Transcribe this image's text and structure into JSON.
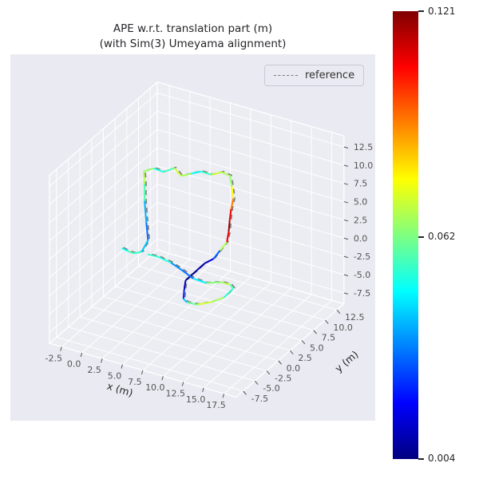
{
  "figure": {
    "axes_background": "#eaeaf2",
    "pane_color": "#ececf3",
    "grid_color": "#ffffff",
    "tick_color": "#555555",
    "text_color": "#262626"
  },
  "legend": {
    "label": "reference",
    "line_style": "dashed",
    "line_color": "#7a7a7a"
  },
  "colorbar": {
    "min": 0.004,
    "mid": 0.062,
    "max": 0.121,
    "colormap": "jet",
    "tick_labels": [
      "0.121",
      "0.062",
      "0.004"
    ]
  },
  "chart_data": {
    "type": "line",
    "projection": "3d",
    "title": "APE w.r.t. translation part (m)",
    "subtitle": "(with Sim(3) Umeyama alignment)",
    "xlabel": "x (m)",
    "ylabel": "y (m)",
    "xlim": [
      -4,
      19
    ],
    "ylim": [
      -9,
      14
    ],
    "zlim": [
      -9,
      14
    ],
    "xticks": [
      -2.5,
      0,
      2.5,
      5,
      7.5,
      10,
      12.5,
      15,
      17.5
    ],
    "yticks": [
      -7.5,
      -5,
      -2.5,
      0,
      2.5,
      5,
      7.5,
      10,
      12.5
    ],
    "zticks": [
      -7.5,
      -5,
      -2.5,
      0,
      2.5,
      5,
      7.5,
      10,
      12.5
    ],
    "colormap": "jet",
    "error_range": [
      0.004,
      0.121
    ],
    "grid": true,
    "legend_position": "upper right",
    "series": [
      {
        "name": "reference",
        "style": "dashed",
        "color": "#7a7a7a",
        "points": [
          [
            -1.7,
            2.8,
            -1.7
          ],
          [
            -0.7,
            2.3,
            -1.5
          ],
          [
            0.3,
            1.8,
            -1.2
          ],
          [
            1.3,
            1.8,
            -0.7
          ],
          [
            1.8,
            2.3,
            0.8
          ],
          [
            1.3,
            2.8,
            2.8
          ],
          [
            0.8,
            3.3,
            5.3
          ],
          [
            0.5,
            3.8,
            7.3
          ],
          [
            0.3,
            4.0,
            8.8
          ],
          [
            1.3,
            4.4,
            9.3
          ],
          [
            2.3,
            4.8,
            8.9
          ],
          [
            3.3,
            5.3,
            9.5
          ],
          [
            4.3,
            5.0,
            8.9
          ],
          [
            5.3,
            5.4,
            9.3
          ],
          [
            6.3,
            5.8,
            9.7
          ],
          [
            7.3,
            6.3,
            9.3
          ],
          [
            8.3,
            6.8,
            9.7
          ],
          [
            9.3,
            6.8,
            9.5
          ],
          [
            9.8,
            6.3,
            8.5
          ],
          [
            10.3,
            5.8,
            7.3
          ],
          [
            10.3,
            5.3,
            6.1
          ],
          [
            10.3,
            5.0,
            4.7
          ],
          [
            10.3,
            4.8,
            3.3
          ],
          [
            10.3,
            4.4,
            2.1
          ],
          [
            9.8,
            3.8,
            1.1
          ],
          [
            9.3,
            3.3,
            0.1
          ],
          [
            8.5,
            2.8,
            -0.5
          ],
          [
            7.9,
            1.8,
            -1.3
          ],
          [
            7.3,
            0.8,
            -2.1
          ],
          [
            7.7,
            -0.2,
            -2.7
          ],
          [
            8.3,
            -1.4,
            -3.1
          ],
          [
            9.3,
            -2.4,
            -2.7
          ],
          [
            10.8,
            -2.8,
            -2.3
          ],
          [
            12.3,
            -2.4,
            -1.7
          ],
          [
            13.3,
            -1.4,
            -1.3
          ],
          [
            13.5,
            0.2,
            -0.9
          ],
          [
            12.5,
            1.3,
            -1.3
          ],
          [
            11.1,
            1.8,
            -1.7
          ],
          [
            9.5,
            1.4,
            -2.1
          ],
          [
            8.1,
            1.0,
            -1.7
          ],
          [
            6.5,
            1.4,
            -1.3
          ],
          [
            4.9,
            1.8,
            -1.0
          ],
          [
            3.3,
            1.9,
            -0.8
          ],
          [
            1.9,
            2.1,
            -1.0
          ]
        ]
      },
      {
        "name": "APE",
        "style": "solid",
        "color_by": "error",
        "points": [
          [
            -2.0,
            3.0,
            -2.0
          ],
          [
            -1.0,
            2.5,
            -1.8
          ],
          [
            0.0,
            2.0,
            -1.5
          ],
          [
            1.0,
            2.0,
            -1.0
          ],
          [
            1.5,
            2.5,
            0.5
          ],
          [
            1.0,
            3.0,
            2.5
          ],
          [
            0.5,
            3.5,
            5.0
          ],
          [
            0.2,
            4.0,
            7.0
          ],
          [
            0.0,
            4.2,
            8.5
          ],
          [
            1.0,
            4.6,
            9.0
          ],
          [
            2.0,
            5.0,
            8.6
          ],
          [
            3.0,
            5.5,
            9.2
          ],
          [
            4.0,
            5.2,
            8.6
          ],
          [
            5.0,
            5.6,
            9.0
          ],
          [
            6.0,
            6.0,
            9.4
          ],
          [
            7.0,
            6.5,
            9.0
          ],
          [
            8.0,
            7.0,
            9.4
          ],
          [
            9.0,
            7.0,
            9.2
          ],
          [
            9.5,
            6.5,
            8.2
          ],
          [
            10.0,
            6.0,
            7.0
          ],
          [
            10.0,
            5.5,
            5.8
          ],
          [
            10.0,
            5.2,
            4.4
          ],
          [
            10.0,
            5.0,
            3.0
          ],
          [
            10.0,
            4.6,
            1.8
          ],
          [
            9.5,
            4.0,
            0.8
          ],
          [
            9.0,
            3.5,
            -0.2
          ],
          [
            8.2,
            3.0,
            -0.8
          ],
          [
            7.6,
            2.0,
            -1.6
          ],
          [
            7.0,
            1.0,
            -2.4
          ],
          [
            7.4,
            0.0,
            -3.0
          ],
          [
            8.0,
            -1.2,
            -3.4
          ],
          [
            9.0,
            -2.2,
            -3.0
          ],
          [
            10.5,
            -2.6,
            -2.6
          ],
          [
            12.0,
            -2.2,
            -2.0
          ],
          [
            13.0,
            -1.2,
            -1.6
          ],
          [
            13.2,
            0.4,
            -1.2
          ],
          [
            12.2,
            1.5,
            -1.6
          ],
          [
            10.8,
            2.0,
            -2.0
          ],
          [
            9.2,
            1.6,
            -2.4
          ],
          [
            7.8,
            1.2,
            -2.0
          ],
          [
            6.2,
            1.6,
            -1.6
          ],
          [
            4.6,
            2.0,
            -1.3
          ],
          [
            3.0,
            2.1,
            -1.1
          ],
          [
            1.6,
            2.3,
            -1.3
          ]
        ],
        "errors": [
          0.045,
          0.052,
          0.06,
          0.048,
          0.035,
          0.028,
          0.05,
          0.065,
          0.072,
          0.058,
          0.045,
          0.066,
          0.078,
          0.055,
          0.042,
          0.068,
          0.075,
          0.06,
          0.07,
          0.085,
          0.1,
          0.115,
          0.121,
          0.095,
          0.04,
          0.018,
          0.01,
          0.006,
          0.004,
          0.015,
          0.03,
          0.052,
          0.068,
          0.075,
          0.058,
          0.048,
          0.065,
          0.072,
          0.055,
          0.038,
          0.025,
          0.045,
          0.058,
          0.05
        ]
      }
    ]
  }
}
